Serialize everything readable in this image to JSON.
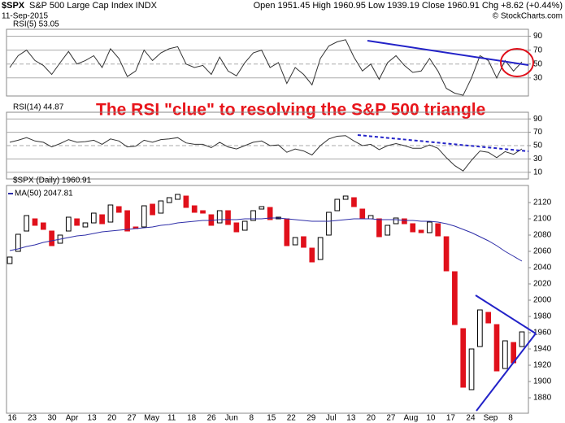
{
  "header": {
    "symbol": "$SPX",
    "name": "S&P 500 Large Cap Index INDX",
    "quote": "Open 1951.45 High 1960.95 Low 1939.19 Close 1960.91 Chg +8.62 (+0.44%)",
    "date": "11-Sep-2015",
    "source": "© StockCharts.com"
  },
  "annotation": "The RSI \"clue\" to resolving the S&P 500 triangle",
  "chart_data": [
    {
      "type": "line",
      "title": "RSI(5) 53.05",
      "color": "#333333",
      "ylim": [
        4,
        100
      ],
      "yticks": [
        30,
        50,
        70,
        90
      ],
      "grid": true,
      "values": [
        45,
        62,
        70,
        55,
        48,
        35,
        52,
        68,
        50,
        55,
        62,
        45,
        72,
        58,
        32,
        40,
        70,
        55,
        66,
        72,
        75,
        50,
        45,
        48,
        35,
        60,
        40,
        33,
        52,
        66,
        70,
        45,
        52,
        22,
        45,
        35,
        20,
        58,
        76,
        82,
        85,
        60,
        40,
        50,
        28,
        52,
        62,
        48,
        38,
        40,
        58,
        40,
        15,
        8,
        5,
        30,
        62,
        55,
        30,
        55,
        40,
        53
      ]
    },
    {
      "type": "line",
      "title": "RSI(14) 44.87",
      "color": "#333333",
      "ylim": [
        0,
        100
      ],
      "yticks": [
        10,
        30,
        50,
        70,
        90
      ],
      "grid": true,
      "values": [
        55,
        58,
        62,
        57,
        55,
        48,
        53,
        59,
        55,
        56,
        58,
        52,
        60,
        57,
        48,
        49,
        58,
        55,
        59,
        60,
        62,
        54,
        52,
        52,
        47,
        55,
        48,
        45,
        50,
        55,
        57,
        50,
        51,
        40,
        45,
        42,
        36,
        50,
        60,
        64,
        65,
        57,
        50,
        52,
        44,
        50,
        53,
        50,
        46,
        46,
        51,
        46,
        32,
        20,
        12,
        28,
        42,
        40,
        32,
        41,
        37,
        45
      ]
    },
    {
      "type": "candlestick",
      "title": "$SPX (Daily) 1960.91",
      "up_color": "#000000",
      "down_color": "#e0101b",
      "ylim": [
        1861,
        2141
      ],
      "yticks": [
        1880,
        1900,
        1920,
        1940,
        1960,
        1980,
        2000,
        2020,
        2040,
        2060,
        2080,
        2100,
        2120
      ],
      "grid": false,
      "open": [
        2045,
        2060,
        2085,
        2100,
        2095,
        2085,
        2070,
        2085,
        2100,
        2090,
        2095,
        2105,
        2096,
        2115,
        2110,
        2090,
        2090,
        2118,
        2107,
        2120,
        2124,
        2128,
        2116,
        2110,
        2105,
        2095,
        2110,
        2095,
        2086,
        2098,
        2112,
        2114,
        2100,
        2100,
        2068,
        2078,
        2064,
        2050,
        2080,
        2110,
        2124,
        2126,
        2112,
        2100,
        2100,
        2080,
        2094,
        2100,
        2094,
        2086,
        2083,
        2094,
        2078,
        2035,
        1965,
        1890,
        1943,
        1985,
        1970,
        1916,
        1948,
        1943
      ],
      "close": [
        2053,
        2081,
        2104,
        2092,
        2087,
        2067,
        2080,
        2102,
        2092,
        2095,
        2107,
        2094,
        2117,
        2108,
        2085,
        2088,
        2116,
        2105,
        2122,
        2126,
        2130,
        2114,
        2108,
        2107,
        2092,
        2110,
        2093,
        2084,
        2097,
        2110,
        2115,
        2099,
        2102,
        2067,
        2077,
        2065,
        2047,
        2077,
        2108,
        2124,
        2128,
        2115,
        2100,
        2104,
        2078,
        2092,
        2101,
        2094,
        2084,
        2083,
        2096,
        2079,
        2036,
        1970,
        1893,
        1940,
        1988,
        1972,
        1913,
        1950,
        1923,
        1961
      ],
      "series": [
        {
          "name": "MA(50) 2047.81",
          "color": "#2e2ea8",
          "values": [
            2061,
            2063,
            2066,
            2068,
            2071,
            2073,
            2075,
            2077,
            2079,
            2080,
            2082,
            2084,
            2085,
            2086,
            2087,
            2088,
            2089,
            2090,
            2092,
            2093,
            2095,
            2096,
            2097,
            2098,
            2098,
            2099,
            2099,
            2099,
            2100,
            2100,
            2100,
            2101,
            2101,
            2100,
            2099,
            2098,
            2097,
            2097,
            2097,
            2098,
            2099,
            2100,
            2100,
            2100,
            2099,
            2099,
            2099,
            2098,
            2098,
            2097,
            2097,
            2096,
            2094,
            2091,
            2087,
            2083,
            2078,
            2073,
            2067,
            2060,
            2054,
            2048
          ]
        }
      ],
      "x_tick_labels": [
        "16",
        "23",
        "30",
        "Apr",
        "13",
        "20",
        "27",
        "May",
        "11",
        "18",
        "26",
        "Jun",
        "8",
        "15",
        "22",
        "29",
        "Jul",
        "13",
        "20",
        "27",
        "Aug",
        "10",
        "17",
        "24",
        "Sep",
        "8"
      ]
    }
  ]
}
